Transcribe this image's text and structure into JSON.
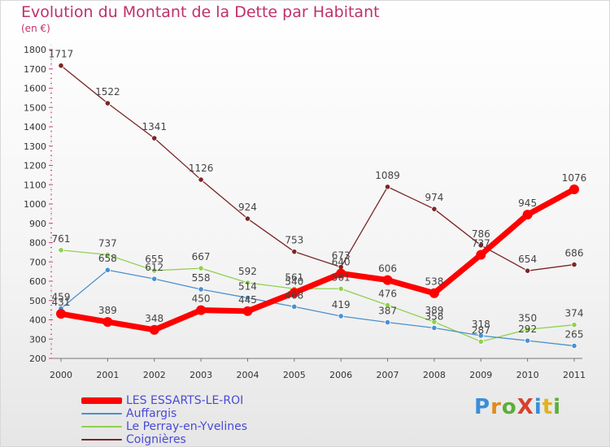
{
  "title": "Evolution du Montant de la Dette par Habitant",
  "subtitle": "(en €)",
  "logo": {
    "text": "ProXiti"
  },
  "chart_data": {
    "type": "line",
    "title": "Evolution du Montant de la Dette par Habitant",
    "subtitle": "(en €)",
    "x": [
      "2000",
      "2001",
      "2002",
      "2003",
      "2004",
      "2005",
      "2006",
      "2007",
      "2008",
      "2009",
      "2010",
      "2011"
    ],
    "ylim": [
      200,
      1800
    ],
    "yticks": [
      200,
      300,
      400,
      500,
      600,
      700,
      800,
      900,
      1000,
      1100,
      1200,
      1300,
      1400,
      1500,
      1600,
      1700,
      1800
    ],
    "grid": false,
    "legend_position": "bottom-left",
    "series": [
      {
        "name": "LES ESSARTS-LE-ROI",
        "color": "#ff0000",
        "values": [
          431,
          389,
          348,
          450,
          445,
          540,
          640,
          606,
          538,
          737,
          945,
          1076
        ]
      },
      {
        "name": "Auffargis",
        "color": "#4a90d0",
        "values": [
          459,
          658,
          612,
          558,
          514,
          468,
          419,
          387,
          358,
          318,
          292,
          265
        ]
      },
      {
        "name": "Le Perray-en-Yvelines",
        "color": "#8fd14f",
        "values": [
          761,
          737,
          655,
          667,
          592,
          561,
          561,
          476,
          389,
          287,
          350,
          374
        ]
      },
      {
        "name": "Coignières",
        "color": "#7a2626",
        "values": [
          1717,
          1522,
          1341,
          1126,
          924,
          753,
          673,
          1089,
          974,
          786,
          654,
          686
        ]
      }
    ]
  }
}
